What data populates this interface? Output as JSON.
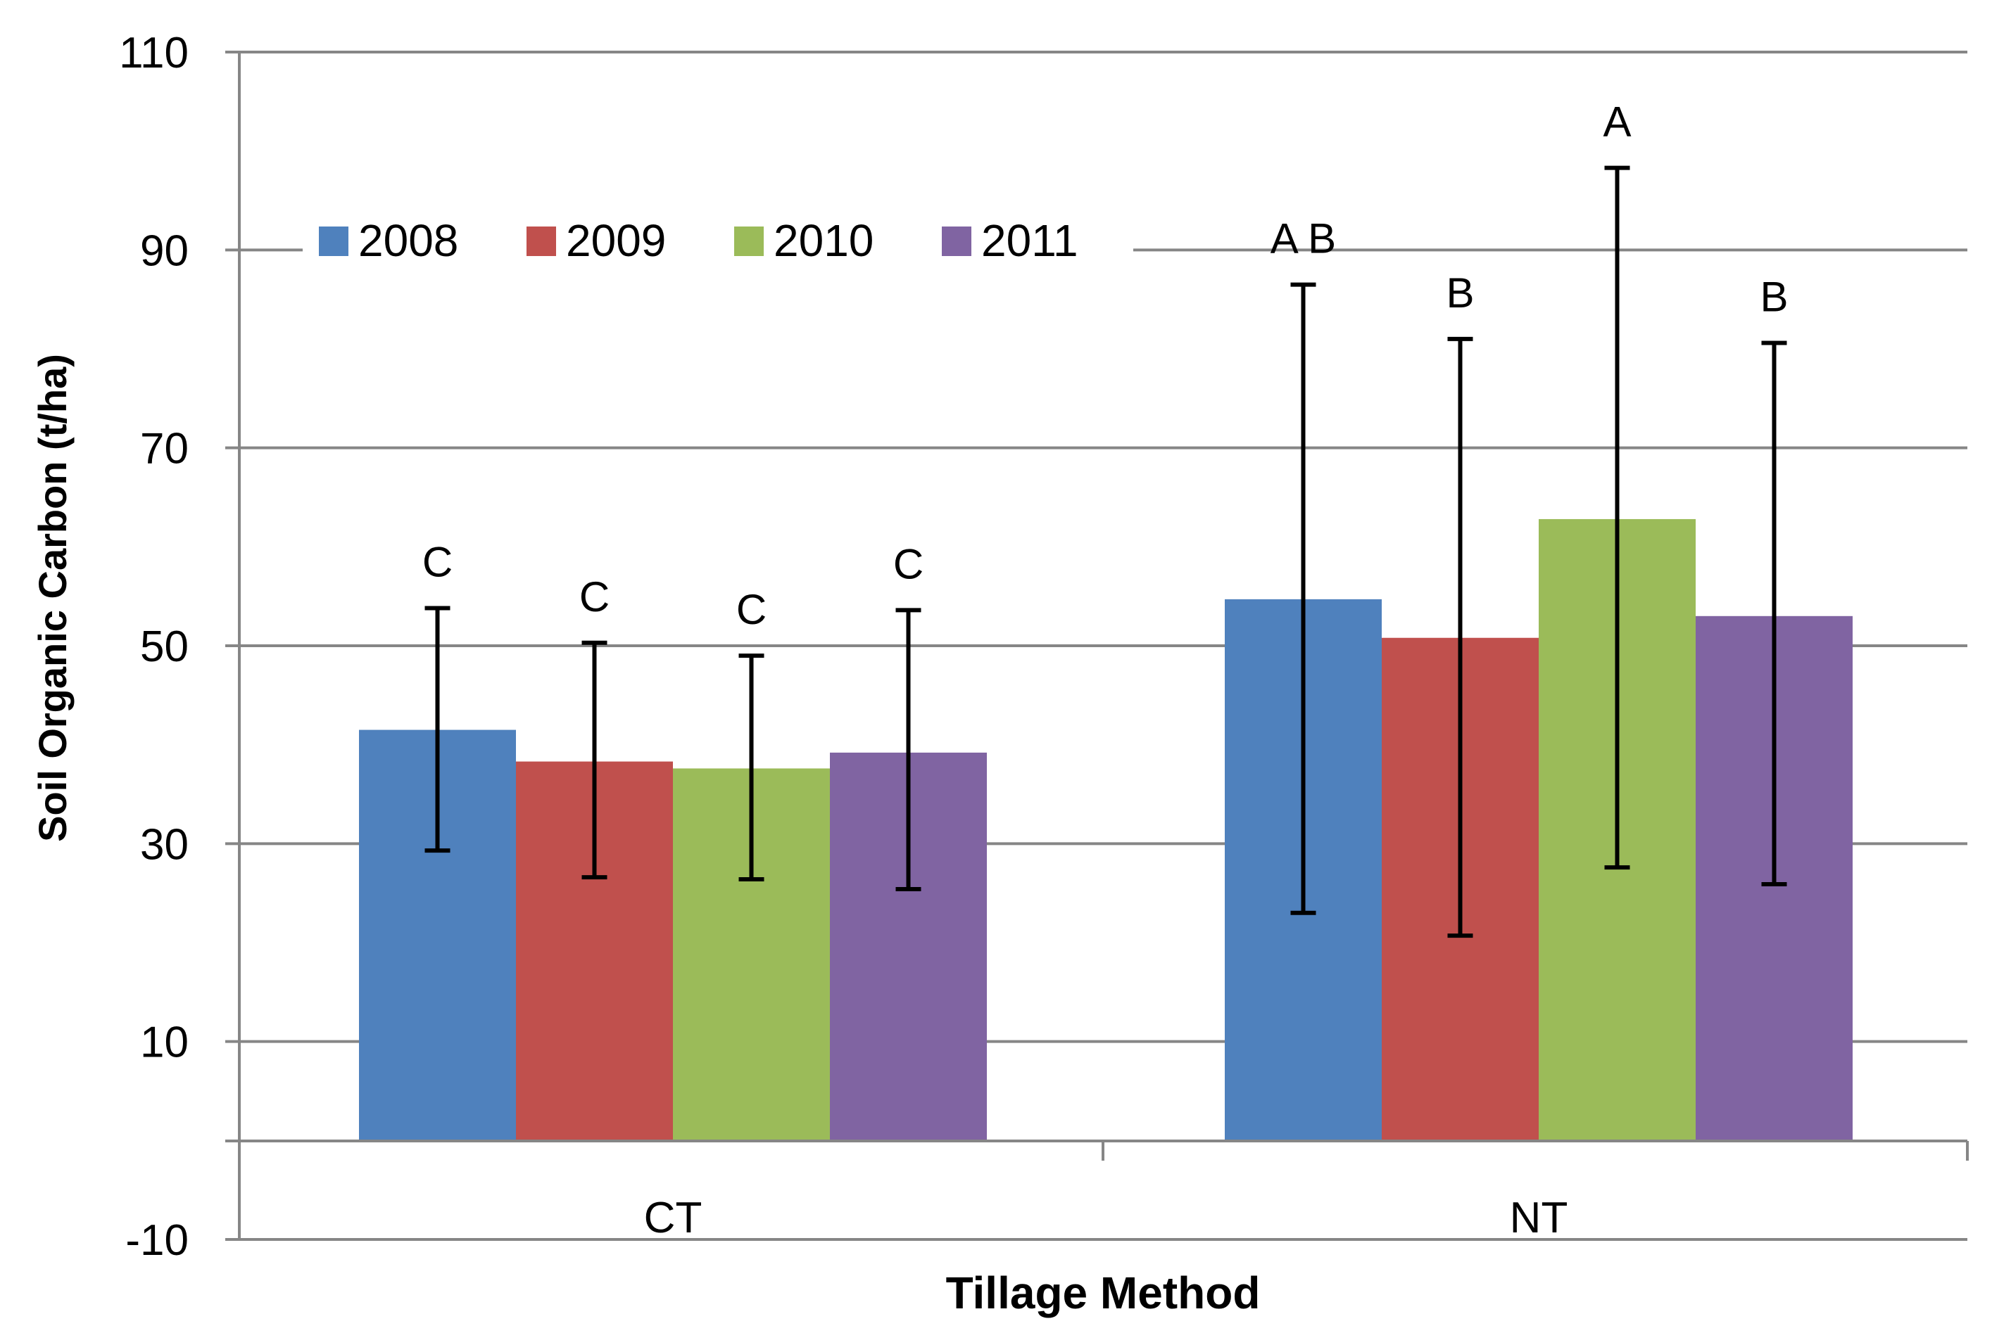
{
  "chart_data": {
    "type": "bar",
    "title": "",
    "xlabel": "Tillage Method",
    "ylabel": "Soil Organic Carbon (t/ha)",
    "ylim": [
      -10,
      110
    ],
    "yticks": [
      110,
      90,
      70,
      50,
      30,
      10,
      -10
    ],
    "grid": true,
    "legend_position": "top-left",
    "categories": [
      "CT",
      "NT"
    ],
    "series": [
      {
        "name": "2008",
        "color": "#4f81bd",
        "values": [
          41.5,
          54.7
        ],
        "error_upper": [
          53.8,
          86.5
        ],
        "error_lower": [
          29.3,
          23.0
        ],
        "labels": [
          "C",
          "A B"
        ]
      },
      {
        "name": "2009",
        "color": "#c0504d",
        "values": [
          38.3,
          50.8
        ],
        "error_upper": [
          50.3,
          81.0
        ],
        "error_lower": [
          26.6,
          20.7
        ],
        "labels": [
          "C",
          "B"
        ]
      },
      {
        "name": "2010",
        "color": "#9bbb59",
        "values": [
          37.6,
          62.8
        ],
        "error_upper": [
          49.0,
          98.3
        ],
        "error_lower": [
          26.4,
          27.6
        ],
        "labels": [
          "C",
          "A"
        ]
      },
      {
        "name": "2011",
        "color": "#8064a2",
        "values": [
          39.2,
          53.0
        ],
        "error_upper": [
          53.6,
          80.6
        ],
        "error_lower": [
          25.4,
          25.9
        ],
        "labels": [
          "C",
          "B"
        ]
      }
    ]
  }
}
